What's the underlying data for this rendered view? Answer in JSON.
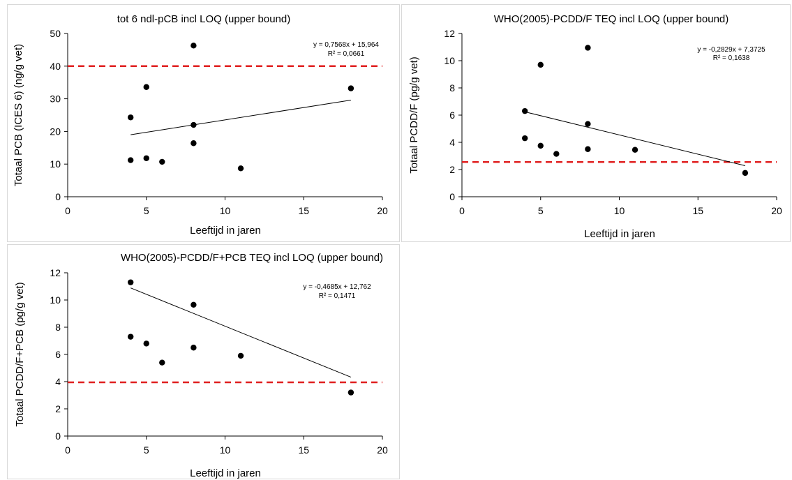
{
  "chart_data": [
    {
      "type": "scatter",
      "title": "tot 6 ndl-pCB incl LOQ (upper bound)",
      "xlabel": "Leeftijd in jaren",
      "ylabel": "Totaal PCB (ICES 6) (ng/g vet)",
      "xlim": [
        0,
        20
      ],
      "ylim": [
        0,
        50
      ],
      "xticks": [
        "0",
        "5",
        "10",
        "15",
        "20"
      ],
      "yticks": [
        "0",
        "10",
        "20",
        "30",
        "40",
        "50"
      ],
      "points": [
        {
          "x": 4,
          "y": 24.3
        },
        {
          "x": 4,
          "y": 11.2
        },
        {
          "x": 5,
          "y": 33.6
        },
        {
          "x": 5,
          "y": 11.8
        },
        {
          "x": 6,
          "y": 10.7
        },
        {
          "x": 8,
          "y": 46.3
        },
        {
          "x": 8,
          "y": 22.0
        },
        {
          "x": 8,
          "y": 16.4
        },
        {
          "x": 11,
          "y": 8.7
        },
        {
          "x": 18,
          "y": 33.2
        }
      ],
      "trendline": {
        "slope": 0.7568,
        "intercept": 15.964,
        "x_range": [
          4,
          18
        ],
        "equation": "y = 0,7568x + 15,964",
        "r2": "R² = 0,0661"
      },
      "reference_line": {
        "y": 40,
        "color": "#e02020",
        "style": "dashed"
      },
      "marker_color": "#000000",
      "grid": false
    },
    {
      "type": "scatter",
      "title": "WHO(2005)-PCDD/F TEQ incl LOQ (upper bound)",
      "xlabel": "Leeftijd in jaren",
      "ylabel": "Totaal PCDD/F (pg/g vet)",
      "xlim": [
        0,
        20
      ],
      "ylim": [
        0,
        12
      ],
      "xticks": [
        "0",
        "5",
        "10",
        "15",
        "20"
      ],
      "yticks": [
        "0",
        "2",
        "4",
        "6",
        "8",
        "10",
        "12"
      ],
      "points": [
        {
          "x": 4,
          "y": 6.3
        },
        {
          "x": 4,
          "y": 4.3
        },
        {
          "x": 5,
          "y": 9.7
        },
        {
          "x": 5,
          "y": 3.75
        },
        {
          "x": 6,
          "y": 3.15
        },
        {
          "x": 8,
          "y": 10.95
        },
        {
          "x": 8,
          "y": 5.35
        },
        {
          "x": 8,
          "y": 3.5
        },
        {
          "x": 11,
          "y": 3.45
        },
        {
          "x": 18,
          "y": 1.75
        }
      ],
      "trendline": {
        "slope": -0.2829,
        "intercept": 7.3725,
        "x_range": [
          4,
          18
        ],
        "equation": "y = -0,2829x + 7,3725",
        "r2": "R² = 0,1638"
      },
      "reference_line": {
        "y": 2.55,
        "color": "#e02020",
        "style": "dashed"
      },
      "marker_color": "#000000",
      "grid": false
    },
    {
      "type": "scatter",
      "title": "WHO(2005)-PCDD/F+PCB TEQ incl LOQ (upper bound)",
      "xlabel": "Leeftijd in jaren",
      "ylabel": "Totaal PCDD/F+PCB (pg/g vet)",
      "xlim": [
        0,
        20
      ],
      "ylim": [
        0,
        12
      ],
      "xticks": [
        "0",
        "5",
        "10",
        "15",
        "20"
      ],
      "yticks": [
        "0",
        "2",
        "4",
        "6",
        "8",
        "10",
        "12"
      ],
      "points": [
        {
          "x": 4,
          "y": 11.3
        },
        {
          "x": 4,
          "y": 7.3
        },
        {
          "x": 5,
          "y": 6.8
        },
        {
          "x": 6,
          "y": 5.4
        },
        {
          "x": 8,
          "y": 9.65
        },
        {
          "x": 8,
          "y": 6.5
        },
        {
          "x": 11,
          "y": 5.9
        },
        {
          "x": 18,
          "y": 3.2
        }
      ],
      "trendline": {
        "slope": -0.4685,
        "intercept": 12.762,
        "x_range": [
          4,
          18
        ],
        "equation": "y = -0,4685x + 12,762",
        "r2": "R² = 0,1471"
      },
      "reference_line": {
        "y": 3.95,
        "color": "#e02020",
        "style": "dashed"
      },
      "marker_color": "#000000",
      "grid": false
    }
  ]
}
